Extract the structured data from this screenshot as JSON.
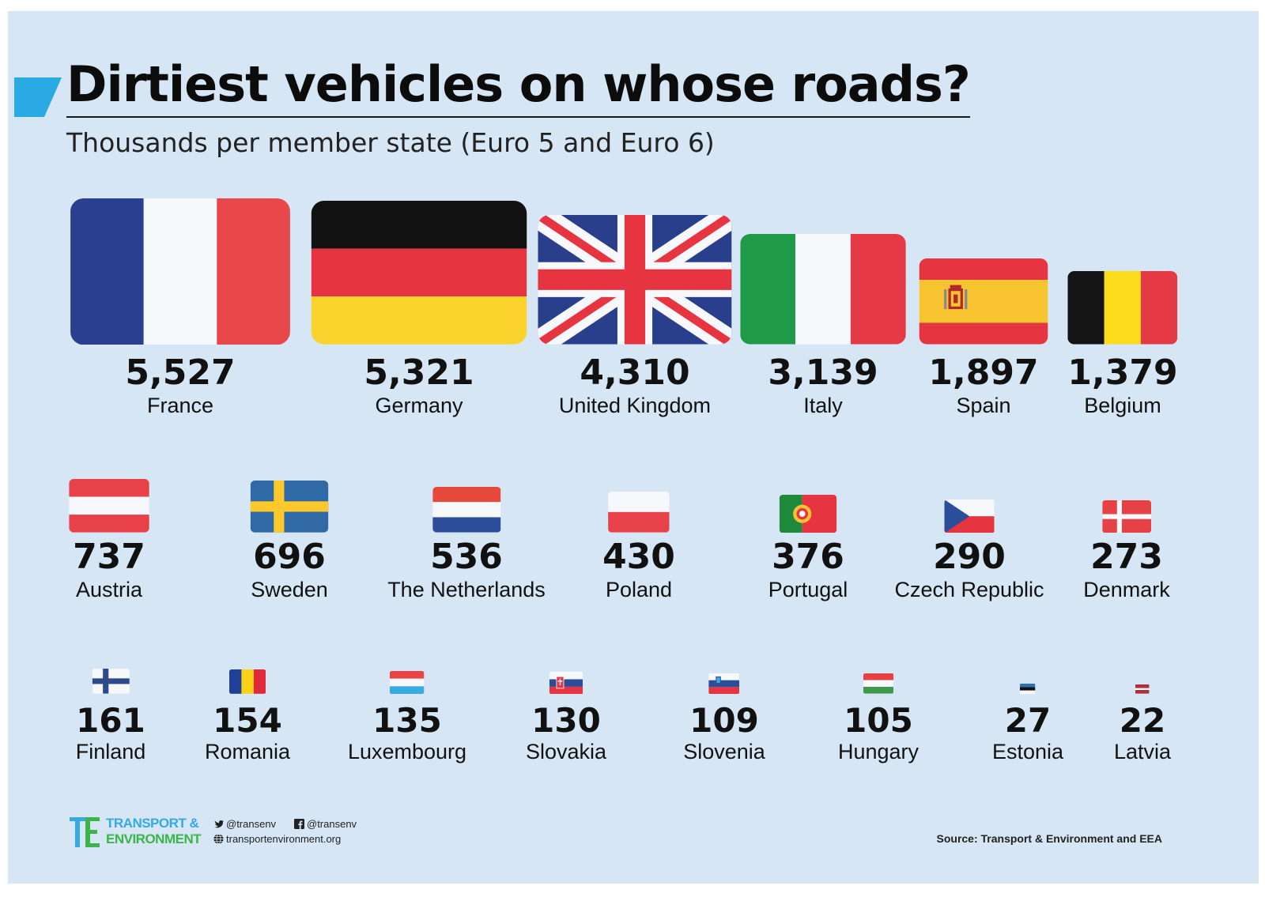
{
  "header": {
    "title": "Dirtiest vehicles on whose roads?",
    "subtitle": "Thousands per member state (Euro 5 and Euro 6)"
  },
  "colors": {
    "background": "#d6e6f5",
    "accent": "#29aae2",
    "te_blue": "#36a9e1",
    "te_green": "#3bb54a"
  },
  "chart_data": {
    "type": "bar",
    "title": "Dirtiest vehicles on whose roads?",
    "subtitle": "Thousands per member state (Euro 5 and Euro 6)",
    "encoding": "flag size proportional to value",
    "categories": [
      "France",
      "Germany",
      "United Kingdom",
      "Italy",
      "Spain",
      "Belgium",
      "Austria",
      "Sweden",
      "The Netherlands",
      "Poland",
      "Portugal",
      "Czech Republic",
      "Denmark",
      "Finland",
      "Romania",
      "Luxembourg",
      "Slovakia",
      "Slovenia",
      "Hungary",
      "Estonia",
      "Latvia"
    ],
    "values": [
      5527,
      5321,
      4310,
      3139,
      1897,
      1379,
      737,
      696,
      536,
      430,
      376,
      290,
      273,
      161,
      154,
      135,
      130,
      109,
      105,
      27,
      22
    ],
    "labels": [
      "5,527",
      "5,321",
      "4,310",
      "3,139",
      "1,897",
      "1,379",
      "737",
      "696",
      "536",
      "430",
      "376",
      "290",
      "273",
      "161",
      "154",
      "135",
      "130",
      "109",
      "105",
      "27",
      "22"
    ],
    "flags": [
      "france-flag",
      "germany-flag",
      "united-kingdom-flag",
      "italy-flag",
      "spain-flag",
      "belgium-flag",
      "austria-flag",
      "sweden-flag",
      "netherlands-flag",
      "poland-flag",
      "portugal-flag",
      "czech-republic-flag",
      "denmark-flag",
      "finland-flag",
      "romania-flag",
      "luxembourg-flag",
      "slovakia-flag",
      "slovenia-flag",
      "hungary-flag",
      "estonia-flag",
      "latvia-flag"
    ],
    "unit": "thousands"
  },
  "footer": {
    "org_line1": "TRANSPORT &",
    "org_line2": "ENVIRONMENT",
    "twitter": "@transenv",
    "facebook": "@transenv",
    "website": "transportenvironment.org",
    "source": "Source: Transport & Environment and EEA"
  }
}
